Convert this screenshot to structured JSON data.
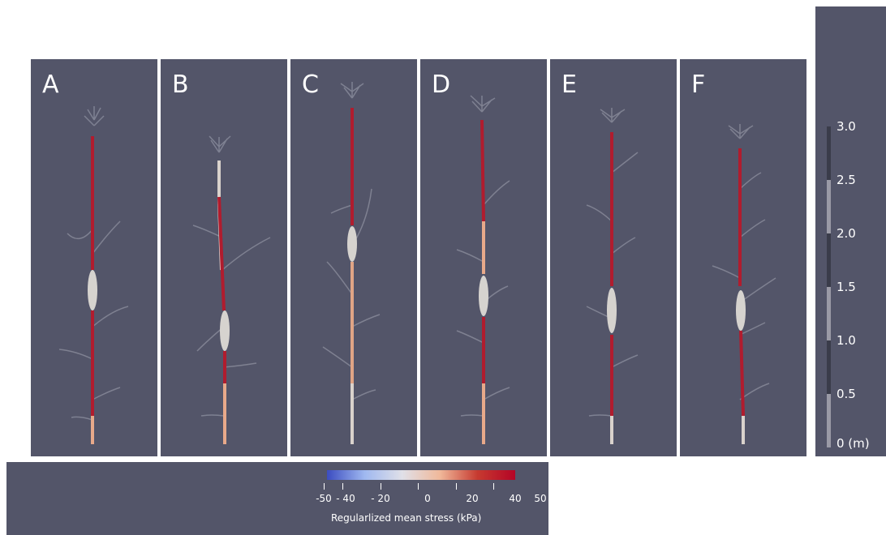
{
  "panels": [
    {
      "label": "A"
    },
    {
      "label": "B"
    },
    {
      "label": "C"
    },
    {
      "label": "D"
    },
    {
      "label": "E"
    },
    {
      "label": "F"
    }
  ],
  "scale_bar": {
    "ticks": [
      "3.0",
      "2.5",
      "2.0",
      "1.5",
      "1.0",
      "0.5",
      "0 (m)"
    ]
  },
  "colorbar": {
    "tick_labels": [
      "-50",
      "- 40",
      "- 20",
      "0",
      "20",
      "40",
      "50"
    ],
    "title": "Regularlized mean stress (kPa)",
    "colors": [
      "#3b4cc0",
      "#e0e0e8",
      "#b40426"
    ]
  },
  "colors": {
    "background": "#535569",
    "stress_high": "#b01c2e",
    "stress_neutral": "#d9d2cc"
  }
}
